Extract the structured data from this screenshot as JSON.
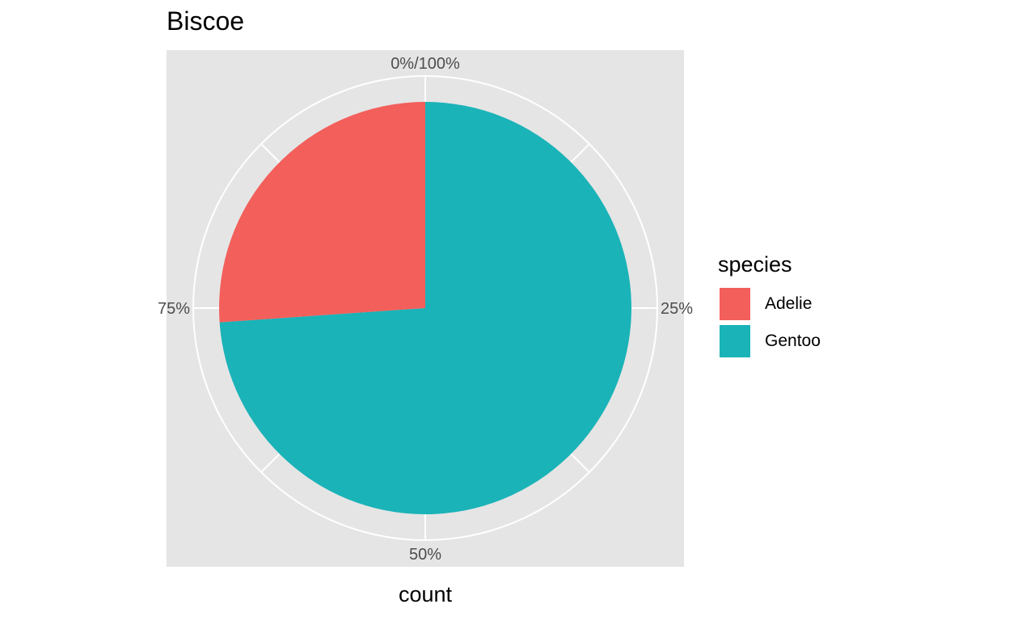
{
  "chart_data": {
    "type": "pie",
    "title": "Biscoe",
    "xlabel": "count",
    "ylabel": "",
    "theta_tick_labels": [
      "0%/100%",
      "25%",
      "50%",
      "75%"
    ],
    "legend": {
      "title": "species",
      "position": "right",
      "entries": [
        {
          "label": "Adelie",
          "color": "#F8766D"
        },
        {
          "label": "Gentoo",
          "color": "#00BFC4"
        }
      ]
    },
    "slices": [
      {
        "label": "Gentoo",
        "share": 0.739,
        "color": "#1AB3B8"
      },
      {
        "label": "Adelie",
        "share": 0.261,
        "color": "#F35F5B"
      }
    ],
    "panel_background": "#E5E5E5",
    "grid": true
  }
}
